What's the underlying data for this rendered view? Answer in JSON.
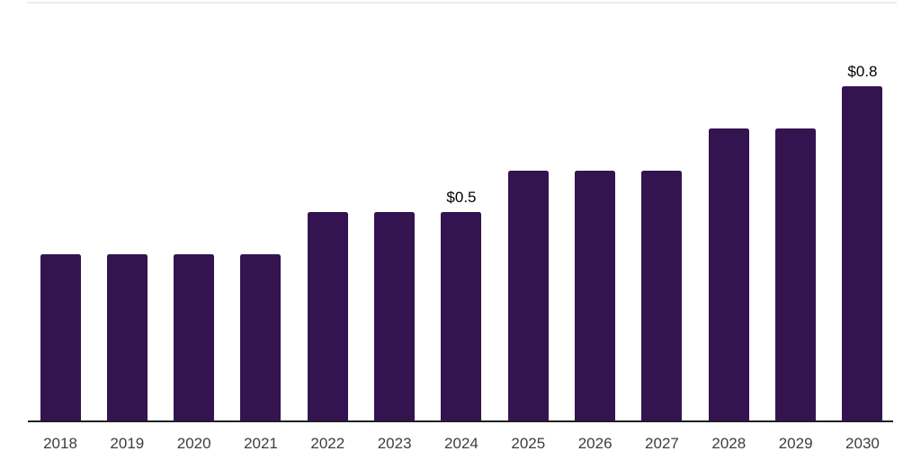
{
  "chart_data": {
    "type": "bar",
    "title": "",
    "categories": [
      "2018",
      "2019",
      "2020",
      "2021",
      "2022",
      "2023",
      "2024",
      "2025",
      "2026",
      "2027",
      "2028",
      "2029",
      "2030"
    ],
    "values": [
      0.4,
      0.4,
      0.4,
      0.4,
      0.5,
      0.5,
      0.5,
      0.6,
      0.6,
      0.6,
      0.7,
      0.7,
      0.8
    ],
    "bar_labels": [
      "",
      "",
      "",
      "",
      "",
      "",
      "$0.5",
      "",
      "",
      "",
      "",
      "",
      "$0.8"
    ],
    "xlabel": "",
    "ylabel": "",
    "ylim": [
      0,
      0.8
    ],
    "grid": false,
    "legend": "none",
    "colors": {
      "bar": "#341450",
      "axis_line": "#1f1f1f",
      "top_border": "#ececec",
      "tick_label": "#3d3d3d",
      "data_label": "#000000",
      "background": "#ffffff"
    }
  }
}
